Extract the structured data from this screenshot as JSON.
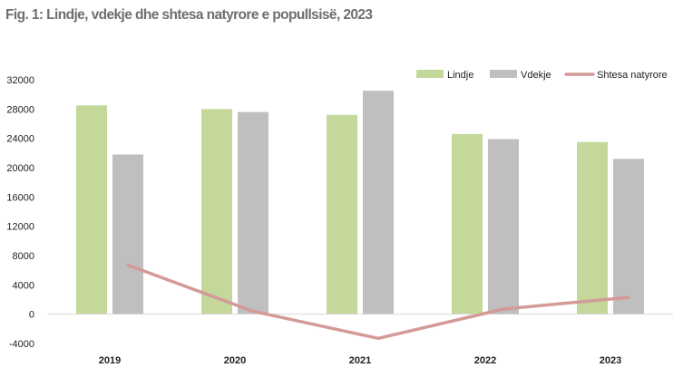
{
  "title": "Fig. 1: Lindje, vdekje dhe shtesa natyrore e popullsisë, 2023",
  "colors": {
    "lindje": "#c4d89c",
    "vdekje": "#bfbfbf",
    "shtesa": "#d49a98",
    "axis": "#d9d9d9"
  },
  "chart_data": {
    "type": "bar",
    "categories": [
      "2019",
      "2020",
      "2021",
      "2022",
      "2023"
    ],
    "series": [
      {
        "name": "Lindje",
        "type": "bar",
        "values": [
          28500,
          28000,
          27200,
          24600,
          23500
        ]
      },
      {
        "name": "Vdekje",
        "type": "bar",
        "values": [
          21800,
          27600,
          30500,
          23900,
          21200
        ]
      },
      {
        "name": "Shtesa natyrore",
        "type": "line",
        "values": [
          6700,
          400,
          -3300,
          700,
          2300
        ]
      }
    ],
    "yticks": [
      -4000,
      0,
      4000,
      8000,
      12000,
      16000,
      20000,
      24000,
      28000,
      32000
    ],
    "ylim": [
      -4000,
      32000
    ],
    "legend_position": "top-right",
    "grid": false
  }
}
